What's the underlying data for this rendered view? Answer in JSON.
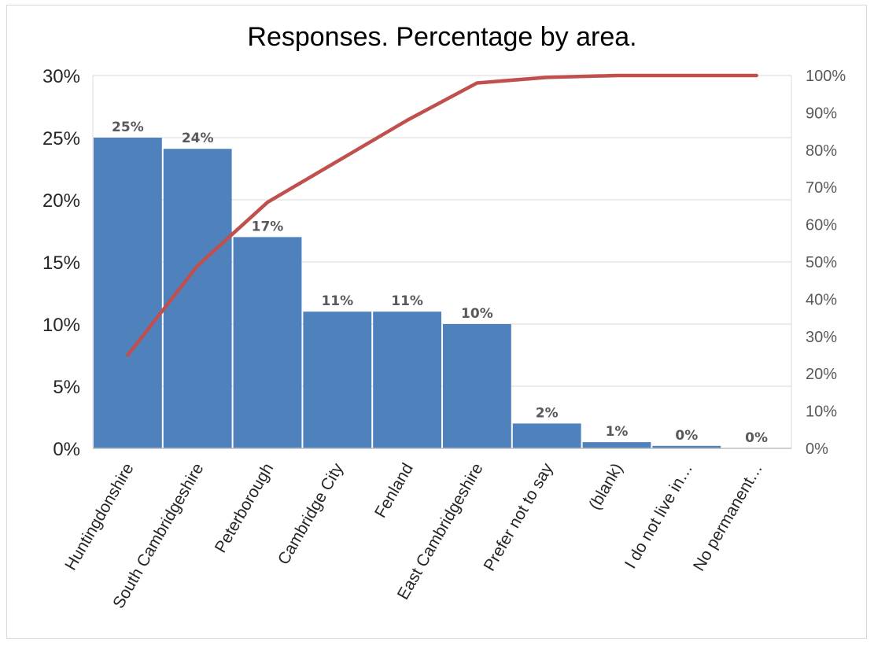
{
  "chart_data": {
    "type": "bar",
    "title": "Responses. Percentage by area.",
    "categories": [
      "Huntingdonshire",
      "South Cambridgeshire",
      "Peterborough",
      "Cambridge City",
      "Fenland",
      "East Cambridgeshire",
      "Prefer not to say",
      "(blank)",
      "I do not live in…",
      "No permanent…"
    ],
    "series": [
      {
        "type": "bar",
        "axis": "primary",
        "values": [
          25,
          24.1,
          17,
          11,
          11,
          10,
          2,
          0.5,
          0.2,
          0
        ],
        "data_labels": [
          "25%",
          "24%",
          "17%",
          "11%",
          "11%",
          "10%",
          "2%",
          "1%",
          "0%",
          "0%"
        ],
        "color": "#4f81bd"
      },
      {
        "type": "line",
        "axis": "secondary",
        "values": [
          25,
          49,
          66,
          77,
          88,
          98,
          99.5,
          100,
          100,
          100
        ],
        "color": "#c0504d"
      }
    ],
    "ylim": [
      0,
      30
    ],
    "yticks": [
      "0%",
      "5%",
      "10%",
      "15%",
      "20%",
      "25%",
      "30%"
    ],
    "y2lim": [
      0,
      100
    ],
    "y2ticks": [
      "0%",
      "10%",
      "20%",
      "30%",
      "40%",
      "50%",
      "60%",
      "70%",
      "80%",
      "90%",
      "100%"
    ],
    "grid": true,
    "legend": "none"
  }
}
